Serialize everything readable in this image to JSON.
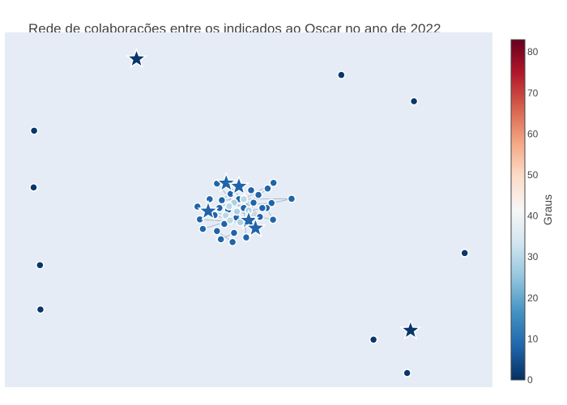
{
  "chart_data": {
    "type": "scatter",
    "title": "Rede de colaborações entre os indicados ao Oscar no ano de 2022",
    "xlabel": "",
    "ylabel": "",
    "grid": false,
    "xlim": [
      0,
      1
    ],
    "ylim": [
      0,
      1
    ],
    "marker_shapes": {
      "circle": "nomination/person node",
      "star": "highlighted node"
    },
    "colorbar": {
      "title": "Graus",
      "min": 0,
      "max": 83,
      "ticks": [
        0,
        10,
        20,
        30,
        40,
        50,
        60,
        70,
        80
      ],
      "colorscale": [
        [
          0.0,
          "#053061"
        ],
        [
          0.1,
          "#2166ac"
        ],
        [
          0.2,
          "#4393c3"
        ],
        [
          0.3,
          "#92c5de"
        ],
        [
          0.4,
          "#d1e5f0"
        ],
        [
          0.5,
          "#f7f7f7"
        ],
        [
          0.6,
          "#fddbc7"
        ],
        [
          0.7,
          "#f4a582"
        ],
        [
          0.8,
          "#d6604d"
        ],
        [
          0.9,
          "#b2182b"
        ],
        [
          1.0,
          "#67001f"
        ]
      ]
    },
    "colors": {
      "background": "#ffffff",
      "plot_bg": "#e5ecf6",
      "node": "#44698f",
      "node_outline": "#ffffff",
      "light_node": "#a9cfe3",
      "edge": "#9fb2c8",
      "title": "#444444"
    },
    "nodes": [
      {
        "x": 0.27,
        "y": 0.925,
        "shape": "star",
        "degree": 1
      },
      {
        "x": 0.69,
        "y": 0.88,
        "shape": "circle",
        "degree": 1
      },
      {
        "x": 0.839,
        "y": 0.806,
        "shape": "circle",
        "degree": 1
      },
      {
        "x": 0.06,
        "y": 0.723,
        "shape": "circle",
        "degree": 1
      },
      {
        "x": 0.059,
        "y": 0.563,
        "shape": "circle",
        "degree": 1
      },
      {
        "x": 0.943,
        "y": 0.378,
        "shape": "circle",
        "degree": 1
      },
      {
        "x": 0.072,
        "y": 0.344,
        "shape": "circle",
        "degree": 1
      },
      {
        "x": 0.073,
        "y": 0.219,
        "shape": "circle",
        "degree": 1
      },
      {
        "x": 0.832,
        "y": 0.16,
        "shape": "star",
        "degree": 1
      },
      {
        "x": 0.756,
        "y": 0.134,
        "shape": "circle",
        "degree": 1
      },
      {
        "x": 0.825,
        "y": 0.04,
        "shape": "circle",
        "degree": 1
      },
      {
        "x": 0.454,
        "y": 0.575,
        "shape": "star",
        "degree": 8
      },
      {
        "x": 0.48,
        "y": 0.566,
        "shape": "star",
        "degree": 8
      },
      {
        "x": 0.417,
        "y": 0.496,
        "shape": "star",
        "degree": 8
      },
      {
        "x": 0.5,
        "y": 0.47,
        "shape": "star",
        "degree": 8
      },
      {
        "x": 0.514,
        "y": 0.448,
        "shape": "star",
        "degree": 8
      },
      {
        "x": 0.435,
        "y": 0.574,
        "shape": "circle",
        "degree": 8
      },
      {
        "x": 0.551,
        "y": 0.576,
        "shape": "circle",
        "degree": 8
      },
      {
        "x": 0.539,
        "y": 0.56,
        "shape": "circle",
        "degree": 8
      },
      {
        "x": 0.588,
        "y": 0.531,
        "shape": "circle",
        "degree": 8
      },
      {
        "x": 0.547,
        "y": 0.519,
        "shape": "circle",
        "degree": 8
      },
      {
        "x": 0.537,
        "y": 0.505,
        "shape": "circle",
        "degree": 8
      },
      {
        "x": 0.55,
        "y": 0.472,
        "shape": "circle",
        "degree": 8
      },
      {
        "x": 0.395,
        "y": 0.509,
        "shape": "circle",
        "degree": 8
      },
      {
        "x": 0.4,
        "y": 0.473,
        "shape": "circle",
        "degree": 8
      },
      {
        "x": 0.406,
        "y": 0.446,
        "shape": "circle",
        "degree": 8
      },
      {
        "x": 0.443,
        "y": 0.417,
        "shape": "circle",
        "degree": 8
      },
      {
        "x": 0.467,
        "y": 0.409,
        "shape": "circle",
        "degree": 8
      },
      {
        "x": 0.495,
        "y": 0.422,
        "shape": "circle",
        "degree": 8
      },
      {
        "x": 0.523,
        "y": 0.48,
        "shape": "circle",
        "degree": 8
      },
      {
        "x": 0.445,
        "y": 0.527,
        "shape": "circle",
        "degree": 8
      },
      {
        "x": 0.48,
        "y": 0.53,
        "shape": "circle",
        "degree": 8
      },
      {
        "x": 0.51,
        "y": 0.52,
        "shape": "circle",
        "degree": 8
      },
      {
        "x": 0.43,
        "y": 0.485,
        "shape": "circle",
        "degree": 8
      },
      {
        "x": 0.45,
        "y": 0.46,
        "shape": "circle",
        "degree": 8
      },
      {
        "x": 0.475,
        "y": 0.478,
        "shape": "circle",
        "degree": 8
      },
      {
        "x": 0.463,
        "y": 0.545,
        "shape": "circle",
        "degree": 8
      },
      {
        "x": 0.52,
        "y": 0.542,
        "shape": "circle",
        "degree": 8
      },
      {
        "x": 0.42,
        "y": 0.53,
        "shape": "circle",
        "degree": 8
      },
      {
        "x": 0.435,
        "y": 0.44,
        "shape": "circle",
        "degree": 8
      },
      {
        "x": 0.49,
        "y": 0.505,
        "shape": "circle",
        "degree": 8
      },
      {
        "x": 0.505,
        "y": 0.555,
        "shape": "circle",
        "degree": 8
      },
      {
        "x": 0.458,
        "y": 0.5,
        "shape": "circle",
        "degree": 8
      },
      {
        "x": 0.528,
        "y": 0.505,
        "shape": "circle",
        "degree": 8
      },
      {
        "x": 0.47,
        "y": 0.435,
        "shape": "circle",
        "degree": 8
      },
      {
        "x": 0.44,
        "y": 0.505,
        "shape": "circle",
        "degree": 8
      },
      {
        "x": 0.47,
        "y": 0.52,
        "shape": "circle",
        "degree": 28
      },
      {
        "x": 0.49,
        "y": 0.53,
        "shape": "circle",
        "degree": 30
      },
      {
        "x": 0.476,
        "y": 0.495,
        "shape": "circle",
        "degree": 28
      },
      {
        "x": 0.46,
        "y": 0.51,
        "shape": "circle",
        "degree": 30
      },
      {
        "x": 0.5,
        "y": 0.498,
        "shape": "circle",
        "degree": 28
      },
      {
        "x": 0.453,
        "y": 0.484,
        "shape": "circle",
        "degree": 30
      },
      {
        "x": 0.483,
        "y": 0.465,
        "shape": "circle",
        "degree": 28
      },
      {
        "x": 0.462,
        "y": 0.47,
        "shape": "circle",
        "degree": 30
      }
    ],
    "edges": [
      [
        11,
        29
      ],
      [
        12,
        30
      ],
      [
        13,
        31
      ],
      [
        14,
        32
      ],
      [
        15,
        33
      ],
      [
        16,
        46
      ],
      [
        17,
        47
      ],
      [
        18,
        48
      ],
      [
        19,
        31
      ],
      [
        20,
        49
      ],
      [
        21,
        50
      ],
      [
        22,
        42
      ],
      [
        23,
        51
      ],
      [
        24,
        52
      ],
      [
        25,
        53
      ],
      [
        26,
        44
      ],
      [
        27,
        39
      ],
      [
        28,
        40
      ],
      [
        29,
        46
      ],
      [
        30,
        47
      ],
      [
        11,
        12
      ],
      [
        13,
        23
      ],
      [
        14,
        15
      ],
      [
        19,
        20
      ],
      [
        21,
        22
      ]
    ]
  }
}
